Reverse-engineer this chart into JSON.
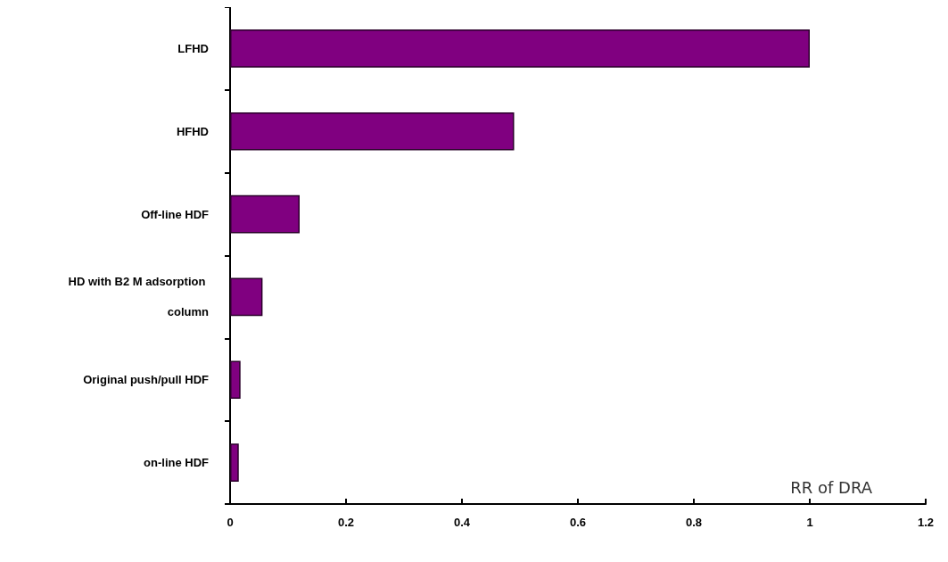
{
  "chart_data": {
    "type": "bar",
    "orientation": "horizontal",
    "xlabel": "RR of DRA",
    "categories": [
      "LFHD",
      "HFHD",
      "Off-line HDF",
      "HD with B2 M adsorption column",
      "Original push/pull HDF",
      "on-line HDF"
    ],
    "values": [
      1.0,
      0.49,
      0.12,
      0.056,
      0.018,
      0.015
    ],
    "color": "#800080",
    "xlim": [
      0,
      1.2
    ],
    "xticks": [
      0,
      0.2,
      0.4,
      0.6,
      0.8,
      1,
      1.2
    ],
    "grid": false
  }
}
